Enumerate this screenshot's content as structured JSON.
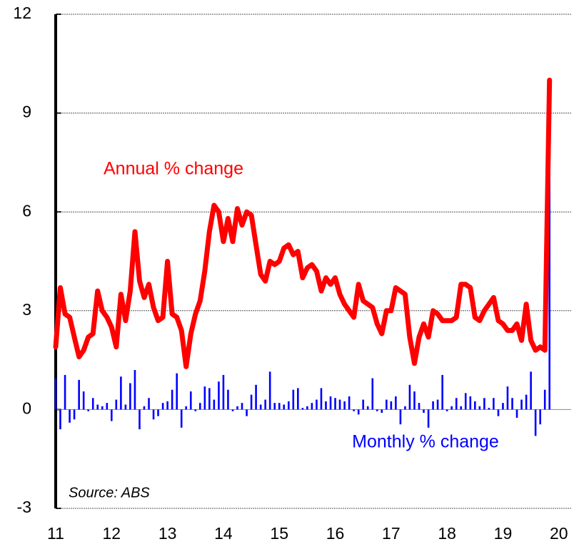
{
  "chart_data": {
    "type": "line",
    "source": "Source: ABS",
    "xlim": [
      2011,
      2020.22
    ],
    "xticks": [
      {
        "value": 2011,
        "label": "11"
      },
      {
        "value": 2012,
        "label": "12"
      },
      {
        "value": 2013,
        "label": "13"
      },
      {
        "value": 2014,
        "label": "14"
      },
      {
        "value": 2015,
        "label": "15"
      },
      {
        "value": 2016,
        "label": "16"
      },
      {
        "value": 2017,
        "label": "17"
      },
      {
        "value": 2018,
        "label": "18"
      },
      {
        "value": 2019,
        "label": "19"
      },
      {
        "value": 2020,
        "label": "20"
      }
    ],
    "ylim": [
      -3,
      12
    ],
    "yticks": [
      -3,
      0,
      3,
      6,
      9,
      12
    ],
    "grid": true,
    "x": [
      2011.0,
      2011.083,
      2011.167,
      2011.25,
      2011.333,
      2011.417,
      2011.5,
      2011.583,
      2011.667,
      2011.75,
      2011.833,
      2011.917,
      2012.0,
      2012.083,
      2012.167,
      2012.25,
      2012.333,
      2012.417,
      2012.5,
      2012.583,
      2012.667,
      2012.75,
      2012.833,
      2012.917,
      2013.0,
      2013.083,
      2013.167,
      2013.25,
      2013.333,
      2013.417,
      2013.5,
      2013.583,
      2013.667,
      2013.75,
      2013.833,
      2013.917,
      2014.0,
      2014.083,
      2014.167,
      2014.25,
      2014.333,
      2014.417,
      2014.5,
      2014.583,
      2014.667,
      2014.75,
      2014.833,
      2014.917,
      2015.0,
      2015.083,
      2015.167,
      2015.25,
      2015.333,
      2015.417,
      2015.5,
      2015.583,
      2015.667,
      2015.75,
      2015.833,
      2015.917,
      2016.0,
      2016.083,
      2016.167,
      2016.25,
      2016.333,
      2016.417,
      2016.5,
      2016.583,
      2016.667,
      2016.75,
      2016.833,
      2016.917,
      2017.0,
      2017.083,
      2017.167,
      2017.25,
      2017.333,
      2017.417,
      2017.5,
      2017.583,
      2017.667,
      2017.75,
      2017.833,
      2017.917,
      2018.0,
      2018.083,
      2018.167,
      2018.25,
      2018.333,
      2018.417,
      2018.5,
      2018.583,
      2018.667,
      2018.75,
      2018.833,
      2018.917,
      2019.0,
      2019.083,
      2019.167,
      2019.25,
      2019.333,
      2019.417,
      2019.5,
      2019.583,
      2019.667,
      2019.75,
      2019.833
    ],
    "series": [
      {
        "name": "Monthly % change",
        "type": "bar",
        "color": "#0000ff",
        "values": [
          0.95,
          -0.6,
          1.05,
          -0.4,
          -0.3,
          0.9,
          0.55,
          -0.05,
          0.35,
          0.15,
          0.1,
          0.2,
          -0.35,
          0.3,
          1.0,
          0.15,
          0.8,
          1.2,
          -0.6,
          0.1,
          0.35,
          -0.3,
          -0.2,
          0.2,
          0.25,
          0.6,
          1.1,
          -0.55,
          0.1,
          0.55,
          -0.05,
          0.2,
          0.7,
          0.65,
          0.3,
          0.85,
          1.05,
          0.6,
          -0.05,
          0.1,
          0.2,
          -0.2,
          0.45,
          0.75,
          0.15,
          0.3,
          1.15,
          0.2,
          0.2,
          0.15,
          0.25,
          0.6,
          0.65,
          0.05,
          0.1,
          0.2,
          0.3,
          0.65,
          0.25,
          0.4,
          0.35,
          0.3,
          0.25,
          0.4,
          -0.05,
          -0.15,
          0.3,
          0.1,
          0.95,
          -0.05,
          -0.1,
          0.3,
          0.25,
          0.4,
          -0.45,
          0.1,
          0.75,
          0.55,
          0.2,
          -0.1,
          -0.55,
          0.25,
          0.3,
          1.05,
          -0.05,
          0.1,
          0.35,
          0.1,
          0.5,
          0.4,
          0.25,
          0.1,
          0.35,
          0.05,
          0.35,
          -0.2,
          0.2,
          0.7,
          0.35,
          -0.25,
          0.3,
          0.45,
          1.15,
          -0.8,
          -0.45,
          0.6,
          8.5
        ]
      },
      {
        "name": "Annual % change",
        "type": "line",
        "color": "#ff0000",
        "values": [
          1.9,
          3.7,
          2.9,
          2.8,
          2.2,
          1.6,
          1.8,
          2.2,
          2.3,
          3.6,
          3.0,
          2.8,
          2.5,
          1.9,
          3.5,
          2.7,
          3.6,
          5.4,
          3.9,
          3.4,
          3.8,
          3.1,
          2.7,
          2.8,
          4.5,
          2.9,
          2.8,
          2.4,
          1.3,
          2.3,
          2.9,
          3.3,
          4.2,
          5.4,
          6.2,
          6.0,
          5.1,
          5.8,
          5.1,
          6.1,
          5.6,
          6.0,
          5.9,
          5.0,
          4.1,
          3.9,
          4.5,
          4.4,
          4.5,
          4.9,
          5.0,
          4.7,
          4.8,
          4.0,
          4.3,
          4.4,
          4.2,
          3.6,
          4.0,
          3.8,
          4.0,
          3.5,
          3.2,
          3.0,
          2.8,
          3.8,
          3.3,
          3.2,
          3.1,
          2.6,
          2.3,
          3.0,
          3.0,
          3.7,
          3.6,
          3.5,
          2.2,
          1.4,
          2.2,
          2.6,
          2.2,
          3.0,
          2.9,
          2.7,
          2.7,
          2.7,
          2.8,
          3.8,
          3.8,
          3.7,
          2.8,
          2.7,
          3.0,
          3.2,
          3.4,
          2.7,
          2.6,
          2.4,
          2.4,
          2.6,
          2.1,
          3.2,
          2.1,
          1.8,
          1.9,
          1.8,
          10.0
        ]
      }
    ]
  }
}
